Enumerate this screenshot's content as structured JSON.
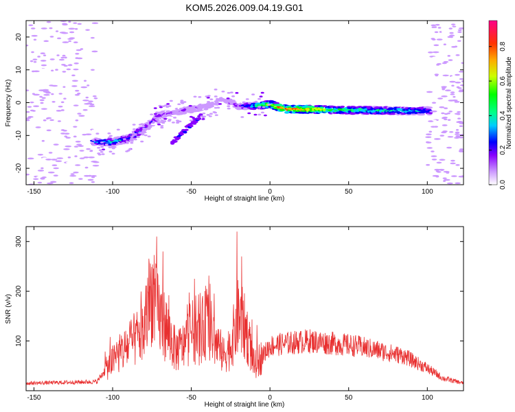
{
  "title": "KOM5.2026.009.04.19.G01",
  "chart_data": [
    {
      "type": "heatmap",
      "xlabel": "Height of straight line (km)",
      "ylabel": "Frequency (Hz)",
      "xlim": [
        -155,
        123
      ],
      "ylim": [
        -25,
        25
      ],
      "xticks": [
        -150,
        -100,
        -50,
        0,
        50,
        100
      ],
      "yticks": [
        -20,
        -10,
        0,
        10,
        20
      ],
      "grid": false,
      "colorbar": {
        "label": "Normalized spectral amplitude",
        "range": [
          0.0,
          0.95
        ],
        "ticks": [
          0.0,
          0.2,
          0.4,
          0.6,
          0.8
        ]
      },
      "dominant_track": {
        "x": [
          -110,
          -100,
          -90,
          -80,
          -70,
          -60,
          -50,
          -40,
          -30,
          -20,
          -10,
          0,
          10,
          25,
          40,
          55,
          70,
          85,
          100
        ],
        "y": [
          -12,
          -12,
          -11,
          -8,
          -4,
          -3,
          -2,
          -1,
          1,
          -1,
          -1,
          -0.5,
          -2,
          -2,
          -2.2,
          -2.3,
          -2.4,
          -2.5,
          -2.5
        ],
        "amplitude": [
          0.35,
          0.45,
          0.4,
          0.3,
          0.25,
          0.2,
          0.2,
          0.18,
          0.15,
          0.2,
          0.45,
          0.7,
          0.95,
          0.9,
          0.6,
          0.55,
          0.5,
          0.5,
          0.4
        ]
      }
    },
    {
      "type": "line",
      "xlabel": "Height of straight line (km)",
      "ylabel": "SNR (v/v)",
      "xlim": [
        -155,
        123
      ],
      "ylim": [
        0,
        330
      ],
      "xticks": [
        -150,
        -100,
        -50,
        0,
        50,
        100
      ],
      "yticks": [
        100,
        200,
        300
      ],
      "grid": false,
      "series": [
        {
          "color": "#e83030",
          "envelope": {
            "x": [
              -155,
              -110,
              -105,
              -100,
              -90,
              -80,
              -75,
              -72,
              -65,
              -60,
              -55,
              -50,
              -45,
              -40,
              -35,
              -30,
              -25,
              -20,
              -15,
              -10,
              -5,
              0,
              10,
              25,
              40,
              55,
              70,
              85,
              100,
              110,
              123
            ],
            "y": [
              15,
              18,
              40,
              60,
              90,
              120,
              200,
              160,
              120,
              80,
              90,
              120,
              110,
              140,
              100,
              70,
              90,
              150,
              120,
              50,
              70,
              90,
              95,
              100,
              95,
              90,
              80,
              70,
              45,
              25,
              15
            ]
          },
          "peaks": [
            {
              "x": -72,
              "y": 310
            },
            {
              "x": -68,
              "y": 280
            },
            {
              "x": -48,
              "y": 225
            },
            {
              "x": -38,
              "y": 215
            },
            {
              "x": -21,
              "y": 320
            },
            {
              "x": -18,
              "y": 270
            }
          ]
        }
      ]
    }
  ]
}
